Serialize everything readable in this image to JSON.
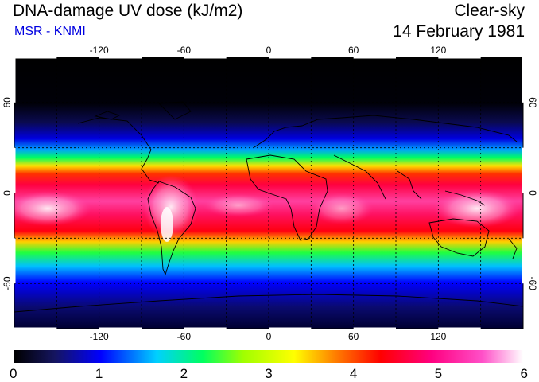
{
  "header": {
    "title": "DNA-damage UV dose (kJ/m2)",
    "source": "MSR - KNMI",
    "mode": "Clear-sky",
    "date": "14 February 1981"
  },
  "map": {
    "projection": "equirectangular",
    "lon_range": [
      -180,
      180
    ],
    "lat_range": [
      -90,
      90
    ],
    "lon_ticks": [
      -120,
      -60,
      0,
      60,
      120
    ],
    "lat_ticks": [
      60,
      0,
      -60
    ],
    "lon_tick_labels": [
      "-120",
      "-60",
      "0",
      "60",
      "120"
    ],
    "lat_tick_labels": [
      "60",
      "0",
      "-60"
    ],
    "graticule": "dashed, every 30 degrees"
  },
  "colorbar": {
    "min": 0,
    "max": 6,
    "tick_labels": [
      "0",
      "1",
      "2",
      "3",
      "4",
      "5",
      "6"
    ],
    "colors": [
      "#000000",
      "#1d1d7a",
      "#0000ff",
      "#00c8ff",
      "#00ff80",
      "#80ff00",
      "#ffff00",
      "#ff8000",
      "#ff0000",
      "#ff0080",
      "#ff40c0",
      "#ffffff"
    ]
  }
}
